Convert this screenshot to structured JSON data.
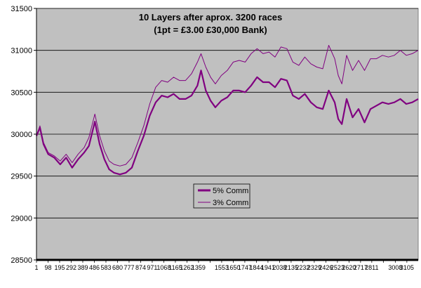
{
  "chart_data": {
    "type": "line",
    "title": "10 Layers after aprox. 3200 races",
    "subtitle": "(1pt = £3.00  £30,000 Bank)",
    "xlabel": "",
    "ylabel": "",
    "ylim": [
      28500,
      31500
    ],
    "xlim": [
      1,
      3200
    ],
    "yticks": [
      28500,
      29000,
      29500,
      30000,
      30500,
      31000,
      31500
    ],
    "xticks": [
      1,
      98,
      195,
      292,
      389,
      486,
      583,
      680,
      777,
      874,
      971,
      1068,
      1165,
      1262,
      1359,
      1456,
      1553,
      1650,
      1747,
      1844,
      1941,
      2038,
      2135,
      2232,
      2329,
      2426,
      2523,
      2620,
      2717,
      2811,
      2908,
      3008,
      3105
    ],
    "xtick_labels_shown": [
      "1",
      "98",
      "195",
      "292",
      "389",
      "486",
      "583",
      "680",
      "777",
      "874",
      "971",
      "1068",
      "1165",
      "1262",
      "1359",
      "1553",
      "1650",
      "1747",
      "1844",
      "1941",
      "2038",
      "2135",
      "2232",
      "2329",
      "2426",
      "2523",
      "2620",
      "2717",
      "2811",
      "3008",
      "3105"
    ],
    "grid": "horizontal",
    "background": "#c0c0c0",
    "legend_position": "center-left",
    "series": [
      {
        "name": "5% Comm",
        "color": "#800080",
        "style": "thick",
        "x": [
          1,
          30,
          60,
          100,
          150,
          200,
          250,
          300,
          350,
          400,
          440,
          490,
          530,
          570,
          610,
          650,
          700,
          750,
          800,
          850,
          900,
          950,
          1000,
          1050,
          1100,
          1150,
          1200,
          1250,
          1300,
          1350,
          1380,
          1420,
          1460,
          1500,
          1550,
          1600,
          1650,
          1700,
          1750,
          1800,
          1850,
          1900,
          1950,
          2000,
          2050,
          2100,
          2150,
          2200,
          2250,
          2300,
          2350,
          2400,
          2450,
          2500,
          2530,
          2560,
          2600,
          2650,
          2700,
          2750,
          2800,
          2850,
          2900,
          2950,
          3000,
          3050,
          3100,
          3150,
          3200
        ],
        "y": [
          29980,
          30080,
          29880,
          29760,
          29720,
          29640,
          29720,
          29600,
          29700,
          29780,
          29860,
          30150,
          29880,
          29700,
          29580,
          29540,
          29520,
          29540,
          29600,
          29800,
          29980,
          30220,
          30380,
          30460,
          30440,
          30480,
          30420,
          30420,
          30460,
          30580,
          30760,
          30520,
          30400,
          30320,
          30400,
          30440,
          30520,
          30520,
          30500,
          30580,
          30680,
          30620,
          30620,
          30560,
          30660,
          30640,
          30460,
          30420,
          30480,
          30380,
          30320,
          30300,
          30520,
          30380,
          30180,
          30120,
          30420,
          30200,
          30300,
          30140,
          30300,
          30340,
          30380,
          30360,
          30380,
          30420,
          30360,
          30380,
          30420
        ]
      },
      {
        "name": "3% Comm",
        "color": "#800080",
        "style": "thin",
        "x": [
          1,
          30,
          60,
          100,
          150,
          200,
          250,
          300,
          350,
          400,
          440,
          490,
          530,
          570,
          610,
          650,
          700,
          750,
          800,
          850,
          900,
          950,
          1000,
          1050,
          1100,
          1150,
          1200,
          1250,
          1300,
          1350,
          1380,
          1420,
          1460,
          1500,
          1550,
          1600,
          1650,
          1700,
          1750,
          1800,
          1850,
          1900,
          1950,
          2000,
          2050,
          2100,
          2150,
          2200,
          2250,
          2300,
          2350,
          2400,
          2450,
          2500,
          2530,
          2560,
          2600,
          2650,
          2700,
          2750,
          2800,
          2850,
          2900,
          2950,
          3000,
          3050,
          3100,
          3150,
          3200
        ],
        "y": [
          29980,
          30100,
          29900,
          29780,
          29740,
          29680,
          29760,
          29660,
          29760,
          29840,
          29960,
          30240,
          29980,
          29800,
          29680,
          29640,
          29620,
          29640,
          29720,
          29900,
          30100,
          30360,
          30560,
          30640,
          30620,
          30680,
          30640,
          30640,
          30720,
          30860,
          30960,
          30800,
          30680,
          30600,
          30700,
          30760,
          30860,
          30880,
          30860,
          30960,
          31020,
          30960,
          30980,
          30920,
          31040,
          31020,
          30860,
          30820,
          30920,
          30840,
          30800,
          30780,
          31060,
          30900,
          30700,
          30600,
          30940,
          30760,
          30880,
          30760,
          30900,
          30900,
          30940,
          30920,
          30940,
          31000,
          30940,
          30960,
          31000
        ]
      }
    ]
  }
}
